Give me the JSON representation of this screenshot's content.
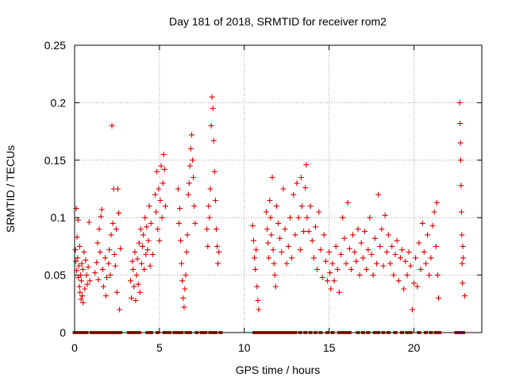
{
  "colors": {
    "series": "#dd0000",
    "grid": "#a0a0a0",
    "axis": "#000000",
    "background": "#ffffff"
  },
  "chart_data": {
    "type": "scatter",
    "title": "Day 181 of 2018, SRMTID for receiver rom2",
    "xlabel": "GPS time / hours",
    "ylabel": "SRMTID / TECUs",
    "xlim": [
      0,
      24
    ],
    "ylim": [
      0,
      0.25
    ],
    "xticks": [
      0,
      5,
      10,
      15,
      20
    ],
    "xtick_labels": [
      "0",
      "5",
      "10",
      "15",
      "20"
    ],
    "yticks": [
      0,
      0.05,
      0.1,
      0.15,
      0.2,
      0.25
    ],
    "ytick_labels": [
      "0",
      "0.05",
      "0.1",
      "0.15",
      "0.2",
      "0.25"
    ],
    "grid": true,
    "marker": "plus",
    "series": [
      {
        "name": "SRMTID",
        "points": [
          [
            0.05,
            0.072
          ],
          [
            0.08,
            0.062
          ],
          [
            0.1,
            0.108
          ],
          [
            0.12,
            0.054
          ],
          [
            0.15,
            0.083
          ],
          [
            0.18,
            0.065
          ],
          [
            0.2,
            0.098
          ],
          [
            0.22,
            0.048
          ],
          [
            0.25,
            0.058
          ],
          [
            0.28,
            0.04
          ],
          [
            0.3,
            0.075
          ],
          [
            0.32,
            0.035
          ],
          [
            0.35,
            0.05
          ],
          [
            0.38,
            0.029
          ],
          [
            0.4,
            0.045
          ],
          [
            0.42,
            0.06
          ],
          [
            0.45,
            0.032
          ],
          [
            0.48,
            0.055
          ],
          [
            0.5,
            0.026
          ],
          [
            0.55,
            0.07
          ],
          [
            0.6,
            0.038
          ],
          [
            0.65,
            0.063
          ],
          [
            0.7,
            0.05
          ],
          [
            0.75,
            0.042
          ],
          [
            0.8,
            0.057
          ],
          [
            0.85,
            0.096
          ],
          [
            0.9,
            0.045
          ],
          [
            1.2,
            0.052
          ],
          [
            1.3,
            0.061
          ],
          [
            1.35,
            0.078
          ],
          [
            1.4,
            0.046
          ],
          [
            1.45,
            0.09
          ],
          [
            1.5,
            0.07
          ],
          [
            1.55,
            0.101
          ],
          [
            1.6,
            0.107
          ],
          [
            1.65,
            0.055
          ],
          [
            1.7,
            0.04
          ],
          [
            1.8,
            0.065
          ],
          [
            1.85,
            0.032
          ],
          [
            1.9,
            0.048
          ],
          [
            2.0,
            0.06
          ],
          [
            2.05,
            0.072
          ],
          [
            2.1,
            0.05
          ],
          [
            2.15,
            0.085
          ],
          [
            2.2,
            0.18
          ],
          [
            2.25,
            0.095
          ],
          [
            2.3,
            0.125
          ],
          [
            2.35,
            0.068
          ],
          [
            2.4,
            0.058
          ],
          [
            2.45,
            0.09
          ],
          [
            2.5,
            0.035
          ],
          [
            2.55,
            0.125
          ],
          [
            2.6,
            0.104
          ],
          [
            2.65,
            0.02
          ],
          [
            2.7,
            0.073
          ],
          [
            3.3,
            0.045
          ],
          [
            3.35,
            0.03
          ],
          [
            3.4,
            0.062
          ],
          [
            3.45,
            0.055
          ],
          [
            3.5,
            0.04
          ],
          [
            3.55,
            0.07
          ],
          [
            3.6,
            0.028
          ],
          [
            3.65,
            0.05
          ],
          [
            3.7,
            0.064
          ],
          [
            3.75,
            0.042
          ],
          [
            3.8,
            0.078
          ],
          [
            3.85,
            0.035
          ],
          [
            3.9,
            0.09
          ],
          [
            3.95,
            0.06
          ],
          [
            4.0,
            0.075
          ],
          [
            4.05,
            0.085
          ],
          [
            4.1,
            0.055
          ],
          [
            4.15,
            0.1
          ],
          [
            4.2,
            0.068
          ],
          [
            4.25,
            0.092
          ],
          [
            4.3,
            0.072
          ],
          [
            4.35,
            0.08
          ],
          [
            4.4,
            0.11
          ],
          [
            4.45,
            0.058
          ],
          [
            4.5,
            0.095
          ],
          [
            4.6,
            0.068
          ],
          [
            4.75,
            0.12
          ],
          [
            4.8,
            0.105
          ],
          [
            4.85,
            0.14
          ],
          [
            4.9,
            0.09
          ],
          [
            4.95,
            0.125
          ],
          [
            5.0,
            0.08
          ],
          [
            5.05,
            0.115
          ],
          [
            5.1,
            0.145
          ],
          [
            5.15,
            0.1
          ],
          [
            5.2,
            0.13
          ],
          [
            5.25,
            0.155
          ],
          [
            5.3,
            0.142
          ],
          [
            5.35,
            0.11
          ],
          [
            6.1,
            0.125
          ],
          [
            6.15,
            0.095
          ],
          [
            6.2,
            0.108
          ],
          [
            6.25,
            0.08
          ],
          [
            6.3,
            0.06
          ],
          [
            6.35,
            0.045
          ],
          [
            6.4,
            0.03
          ],
          [
            6.45,
            0.022
          ],
          [
            6.5,
            0.038
          ],
          [
            6.55,
            0.05
          ],
          [
            6.6,
            0.07
          ],
          [
            6.65,
            0.085
          ],
          [
            6.7,
            0.12
          ],
          [
            6.75,
            0.13
          ],
          [
            6.8,
            0.145
          ],
          [
            6.85,
            0.16
          ],
          [
            6.9,
            0.172
          ],
          [
            6.95,
            0.15
          ],
          [
            7.0,
            0.135
          ],
          [
            7.05,
            0.11
          ],
          [
            7.1,
            0.095
          ],
          [
            7.8,
            0.09
          ],
          [
            7.85,
            0.075
          ],
          [
            7.9,
            0.11
          ],
          [
            7.95,
            0.1
          ],
          [
            8.0,
            0.125
          ],
          [
            8.05,
            0.18
          ],
          [
            8.1,
            0.205
          ],
          [
            8.15,
            0.195
          ],
          [
            8.2,
            0.167
          ],
          [
            8.25,
            0.14
          ],
          [
            8.3,
            0.115
          ],
          [
            8.35,
            0.09
          ],
          [
            8.4,
            0.075
          ],
          [
            8.45,
            0.06
          ],
          [
            8.5,
            0.07
          ],
          [
            10.5,
            0.093
          ],
          [
            10.55,
            0.08
          ],
          [
            10.6,
            0.065
          ],
          [
            10.65,
            0.055
          ],
          [
            10.7,
            0.072
          ],
          [
            10.75,
            0.04
          ],
          [
            10.8,
            0.028
          ],
          [
            10.85,
            0.02
          ],
          [
            11.3,
            0.105
          ],
          [
            11.35,
            0.09
          ],
          [
            11.4,
            0.078
          ],
          [
            11.45,
            0.065
          ],
          [
            11.5,
            0.115
          ],
          [
            11.55,
            0.1
          ],
          [
            11.6,
            0.085
          ],
          [
            11.65,
            0.135
          ],
          [
            11.7,
            0.072
          ],
          [
            11.75,
            0.06
          ],
          [
            11.8,
            0.05
          ],
          [
            11.85,
            0.04
          ],
          [
            11.9,
            0.11
          ],
          [
            12.0,
            0.095
          ],
          [
            12.1,
            0.082
          ],
          [
            12.2,
            0.07
          ],
          [
            12.3,
            0.125
          ],
          [
            12.4,
            0.09
          ],
          [
            12.5,
            0.06
          ],
          [
            12.6,
            0.075
          ],
          [
            12.7,
            0.1
          ],
          [
            12.8,
            0.065
          ],
          [
            12.9,
            0.12
          ],
          [
            13.0,
            0.085
          ],
          [
            13.1,
            0.13
          ],
          [
            13.2,
            0.1
          ],
          [
            13.3,
            0.072
          ],
          [
            13.35,
            0.135
          ],
          [
            13.4,
            0.11
          ],
          [
            13.5,
            0.088
          ],
          [
            13.6,
            0.126
          ],
          [
            13.65,
            0.146
          ],
          [
            13.7,
            0.1
          ],
          [
            13.8,
            0.088
          ],
          [
            13.9,
            0.11
          ],
          [
            14.0,
            0.08
          ],
          [
            14.1,
            0.065
          ],
          [
            14.2,
            0.092
          ],
          [
            14.3,
            0.055
          ],
          [
            14.4,
            0.105
          ],
          [
            14.5,
            0.072
          ],
          [
            14.6,
            0.048
          ],
          [
            14.7,
            0.085
          ],
          [
            14.8,
            0.062
          ],
          [
            14.9,
            0.045
          ],
          [
            15.0,
            0.07
          ],
          [
            15.05,
            0.052
          ],
          [
            15.1,
            0.038
          ],
          [
            15.2,
            0.06
          ],
          [
            15.3,
            0.045
          ],
          [
            15.4,
            0.075
          ],
          [
            15.5,
            0.055
          ],
          [
            15.6,
            0.035
          ],
          [
            15.7,
            0.068
          ],
          [
            15.8,
            0.1
          ],
          [
            15.9,
            0.082
          ],
          [
            16.0,
            0.06
          ],
          [
            16.1,
            0.113
          ],
          [
            16.2,
            0.073
          ],
          [
            16.3,
            0.055
          ],
          [
            16.4,
            0.085
          ],
          [
            16.5,
            0.07
          ],
          [
            16.6,
            0.062
          ],
          [
            16.7,
            0.09
          ],
          [
            16.8,
            0.05
          ],
          [
            16.9,
            0.078
          ],
          [
            17.0,
            0.065
          ],
          [
            17.1,
            0.088
          ],
          [
            17.2,
            0.055
          ],
          [
            17.3,
            0.072
          ],
          [
            17.4,
            0.1
          ],
          [
            17.5,
            0.068
          ],
          [
            17.6,
            0.05
          ],
          [
            17.7,
            0.082
          ],
          [
            17.8,
            0.06
          ],
          [
            17.9,
            0.12
          ],
          [
            18.0,
            0.075
          ],
          [
            18.1,
            0.09
          ],
          [
            18.2,
            0.058
          ],
          [
            18.3,
            0.102
          ],
          [
            18.4,
            0.07
          ],
          [
            18.5,
            0.085
          ],
          [
            18.6,
            0.06
          ],
          [
            18.7,
            0.075
          ],
          [
            18.8,
            0.05
          ],
          [
            18.9,
            0.068
          ],
          [
            19.0,
            0.08
          ],
          [
            19.1,
            0.045
          ],
          [
            19.2,
            0.065
          ],
          [
            19.3,
            0.072
          ],
          [
            19.4,
            0.038
          ],
          [
            19.5,
            0.062
          ],
          [
            19.6,
            0.05
          ],
          [
            19.7,
            0.07
          ],
          [
            19.8,
            0.058
          ],
          [
            19.9,
            0.02
          ],
          [
            20.0,
            0.043
          ],
          [
            20.1,
            0.065
          ],
          [
            20.2,
            0.04
          ],
          [
            20.3,
            0.078
          ],
          [
            20.4,
            0.055
          ],
          [
            20.5,
            0.095
          ],
          [
            20.6,
            0.07
          ],
          [
            20.7,
            0.06
          ],
          [
            20.8,
            0.085
          ],
          [
            20.9,
            0.05
          ],
          [
            21.0,
            0.065
          ],
          [
            21.1,
            0.093
          ],
          [
            21.2,
            0.105
          ],
          [
            21.3,
            0.075
          ],
          [
            21.35,
            0.113
          ],
          [
            21.4,
            0.05
          ],
          [
            21.45,
            0.03
          ],
          [
            22.7,
            0.2
          ],
          [
            22.72,
            0.182
          ],
          [
            22.74,
            0.165
          ],
          [
            22.76,
            0.15
          ],
          [
            22.78,
            0.128
          ],
          [
            22.8,
            0.105
          ],
          [
            22.82,
            0.085
          ],
          [
            22.84,
            0.06
          ],
          [
            22.86,
            0.043
          ],
          [
            22.88,
            0.075
          ],
          [
            22.9,
            0.065
          ],
          [
            23.0,
            0.032
          ]
        ]
      }
    ],
    "baseline_hours": [
      0,
      0.1,
      0.3,
      0.5,
      0.7,
      1.0,
      1.1,
      1.2,
      1.3,
      1.4,
      1.5,
      1.7,
      1.9,
      2.1,
      2.3,
      2.5,
      2.7,
      3.2,
      3.3,
      3.4,
      3.5,
      3.6,
      3.8,
      4.3,
      4.5,
      4.9,
      5.3,
      5.4,
      5.6,
      5.9,
      6.1,
      6.3,
      6.6,
      6.8,
      7.2,
      7.5,
      7.7,
      8.0,
      8.1,
      8.3,
      8.6,
      10.6,
      10.8,
      11.0,
      11.1,
      11.3,
      11.5,
      11.7,
      11.9,
      12.0,
      12.2,
      12.4,
      12.5,
      12.7,
      12.9,
      13.0,
      13.3,
      13.6,
      13.9,
      14.2,
      14.5,
      14.9,
      15.2,
      15.6,
      15.8,
      16.0,
      16.2,
      16.7,
      17.0,
      17.3,
      17.7,
      17.9,
      18.2,
      18.5,
      18.9,
      19.3,
      19.6,
      19.8,
      20.3,
      20.7,
      21.0,
      21.3,
      21.5,
      22.5,
      22.6,
      22.7,
      22.8,
      22.9
    ]
  }
}
